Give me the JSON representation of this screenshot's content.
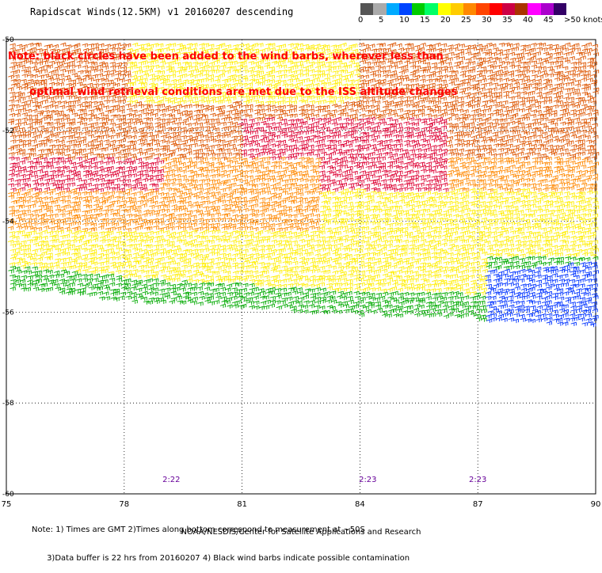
{
  "title": "Rapidscat Winds(12.5KM) v1 20160207 descending",
  "note_lines": [
    "Note: black circles have been added to the wind barbs, wherever less than",
    "      optimal wind retrieval conditions are met due to the ISS altitude changes"
  ],
  "legend": {
    "labels": [
      "0",
      "5",
      "10",
      "15",
      "20",
      "25",
      "30",
      "35",
      "40",
      "45",
      ">50 knots"
    ],
    "colors": [
      "#555555",
      "#aaaaaa",
      "#00aaff",
      "#0044ff",
      "#00cc00",
      "#00ff66",
      "#ffff00",
      "#ffcc00",
      "#ff8800",
      "#ff4400",
      "#ff0000",
      "#cc0044",
      "#aa3300",
      "#ff00ff",
      "#aa00cc",
      "#330066"
    ]
  },
  "map": {
    "lon_ticks": [
      "75",
      "78",
      "81",
      "84",
      "87",
      "90"
    ],
    "lat_ticks": [
      "-50",
      "-52",
      "-54",
      "-56",
      "-58",
      "-60"
    ],
    "lon_range": [
      75,
      90
    ],
    "lat_range": [
      -60,
      -50
    ],
    "times": [
      {
        "label": "2:22",
        "lon": 79.2
      },
      {
        "label": "2:23",
        "lon": 84.2
      },
      {
        "label": "2:23",
        "lon": 87.0
      }
    ],
    "speed_colors": {
      "blue": "#0033ff",
      "green": "#00aa00",
      "yellow": "#ffee00",
      "orange": "#ff8800",
      "darkorange": "#dd5500",
      "red": "#dd0033"
    }
  },
  "footnote": [
    "Note: 1) Times are GMT 2)Times along bottom correspond to measurement at ~50S",
    "      3)Data buffer is 22 hrs from 20160207 4) Black wind barbs indicate possible contamination"
  ],
  "credit": "NOAA/NESDIS/Center for Satellite Applications and Research"
}
